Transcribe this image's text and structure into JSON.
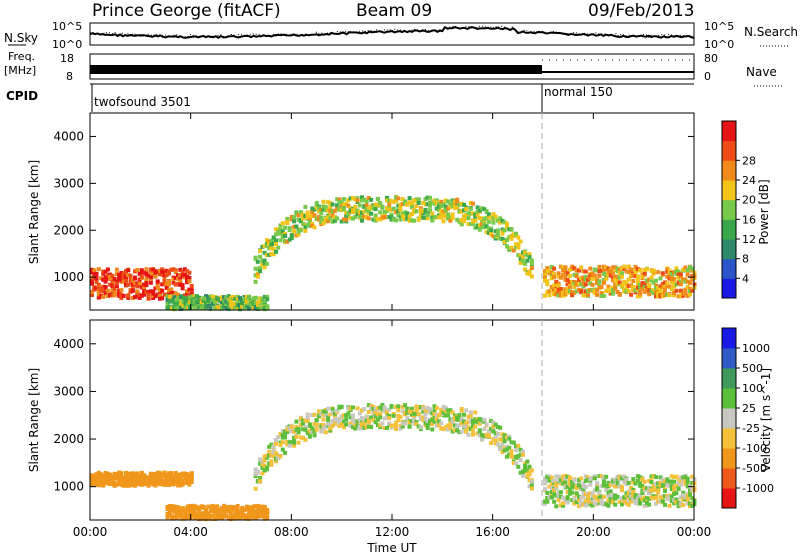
{
  "header": {
    "station": "Prince George (fitACF)",
    "beam": "Beam 09",
    "date": "09/Feb/2013"
  },
  "noise_panel": {
    "left_label": "N.Sky",
    "left_ticks": [
      "10^5",
      "10^0"
    ],
    "right_label": "N.Search",
    "right_ticks": [
      "10^5",
      "10^0"
    ]
  },
  "freq_panel": {
    "left_label_top": "Freq.",
    "left_label_unit": "[MHz]",
    "left_ticks": [
      "18",
      "8"
    ],
    "right_label": "Nave",
    "right_ticks": [
      "80",
      "0"
    ]
  },
  "cpid_panel": {
    "label": "CPID",
    "modes": [
      {
        "name": "twofsound 3501",
        "start_hour": 0,
        "end_hour": 18
      },
      {
        "name": "normal 150",
        "start_hour": 18,
        "end_hour": 24
      }
    ]
  },
  "colors": {
    "power": [
      "#1a1ae6",
      "#2a55c8",
      "#2f8a6a",
      "#3aa84a",
      "#77c94a",
      "#f2c418",
      "#f08a1a",
      "#ee4c16",
      "#e61414"
    ],
    "velocity": [
      "#e61414",
      "#ee5a1a",
      "#f0961a",
      "#f5c03a",
      "#c8c8c0",
      "#5cbf3a",
      "#3f9a5a",
      "#2f5cc4",
      "#1a1ae6"
    ],
    "mode_marker": "#000000"
  },
  "chart_data": [
    {
      "type": "heatmap",
      "title": "Power",
      "xlabel": "Time UT",
      "ylabel": "Slant Range [km]",
      "xlim": [
        0,
        24
      ],
      "ylim": [
        300,
        4500
      ],
      "x_ticks": [
        "00:00",
        "04:00",
        "08:00",
        "12:00",
        "16:00",
        "20:00",
        "00:00"
      ],
      "y_ticks": [
        "1000",
        "2000",
        "3000",
        "4000"
      ],
      "colorbar": {
        "label": "Power [dB]",
        "ticks": [
          "4",
          "8",
          "12",
          "16",
          "20",
          "24",
          "28"
        ],
        "range": [
          0,
          30
        ]
      },
      "features": [
        {
          "name": "near-range band",
          "t_start": 0,
          "t_end": 4,
          "range_center_km": 900,
          "power_db": 26
        },
        {
          "name": "low band",
          "t_start": 3,
          "t_end": 7,
          "range_center_km": 500,
          "power_db": 14
        },
        {
          "name": "main arc",
          "t_start": 6.5,
          "t_end": 17.5,
          "range_peak_km": 2500,
          "power_db": 16
        },
        {
          "name": "late band",
          "t_start": 18,
          "t_end": 24,
          "range_center_km": 950,
          "power_db": 20
        }
      ]
    },
    {
      "type": "heatmap",
      "title": "Velocity",
      "xlabel": "Time UT",
      "ylabel": "Slant Range [km]",
      "xlim": [
        0,
        24
      ],
      "ylim": [
        300,
        4500
      ],
      "x_ticks": [
        "00:00",
        "04:00",
        "08:00",
        "12:00",
        "16:00",
        "20:00",
        "00:00"
      ],
      "y_ticks": [
        "1000",
        "2000",
        "3000",
        "4000"
      ],
      "colorbar": {
        "label": "Velocity [m s^-1]",
        "ticks": [
          "1000",
          "500",
          "100",
          "25",
          "-25",
          "-100",
          "-500",
          "-1000"
        ]
      },
      "features": [
        {
          "name": "early flows",
          "t_start": 0,
          "t_end": 4,
          "range_center_km": 1200,
          "velocity_ms": -400
        },
        {
          "name": "low band",
          "t_start": 3,
          "t_end": 7,
          "range_center_km": 500,
          "velocity_ms": -200
        },
        {
          "name": "ground scatter arc",
          "t_start": 6.5,
          "t_end": 17.5,
          "range_peak_km": 2500,
          "velocity_ms": 0
        },
        {
          "name": "late ground scatter",
          "t_start": 18,
          "t_end": 24,
          "range_center_km": 950,
          "velocity_ms": 0
        }
      ]
    }
  ]
}
